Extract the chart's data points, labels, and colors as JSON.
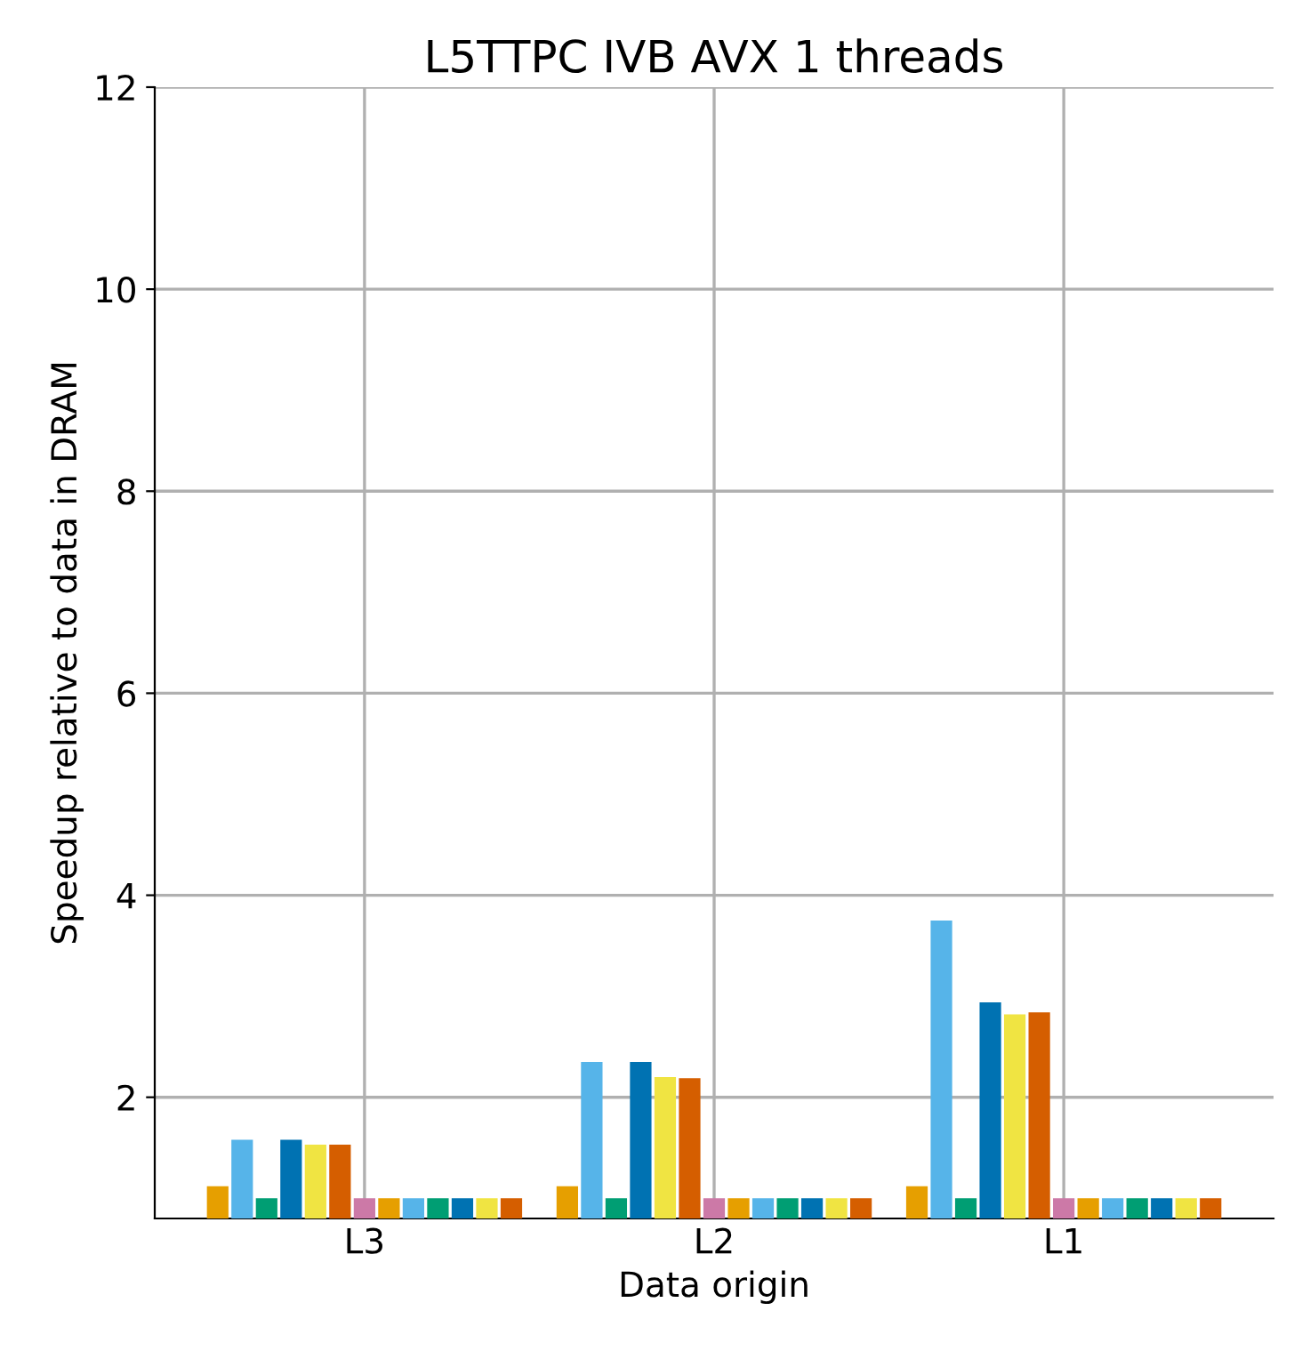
{
  "chart_data": {
    "type": "bar",
    "title": "L5TTPC IVB AVX 1 threads",
    "xlabel": "Data origin",
    "ylabel": "Speedup relative to data in DRAM",
    "categories": [
      "L3",
      "L2",
      "L1"
    ],
    "series": [
      {
        "color": "#e69f00",
        "values": [
          1.12,
          1.12,
          1.12
        ]
      },
      {
        "color": "#56b4e9",
        "values": [
          1.58,
          2.35,
          3.75
        ]
      },
      {
        "color": "#009e73",
        "values": [
          1.0,
          1.0,
          1.0
        ]
      },
      {
        "color": "#0072b2",
        "values": [
          1.58,
          2.35,
          2.94
        ]
      },
      {
        "color": "#f0e442",
        "values": [
          1.53,
          2.2,
          2.82
        ]
      },
      {
        "color": "#d55e00",
        "values": [
          1.53,
          2.19,
          2.84
        ]
      },
      {
        "color": "#cc79a7",
        "values": [
          1.0,
          1.0,
          1.0
        ]
      },
      {
        "color": "#e69f00",
        "values": [
          1.0,
          1.0,
          1.0
        ]
      },
      {
        "color": "#56b4e9",
        "values": [
          1.0,
          1.0,
          1.0
        ]
      },
      {
        "color": "#009e73",
        "values": [
          1.0,
          1.0,
          1.0
        ]
      },
      {
        "color": "#0072b2",
        "values": [
          1.0,
          1.0,
          1.0
        ]
      },
      {
        "color": "#f0e442",
        "values": [
          1.0,
          1.0,
          1.0
        ]
      },
      {
        "color": "#d55e00",
        "values": [
          1.0,
          1.0,
          1.0
        ]
      }
    ],
    "ylim": [
      0.8,
      12
    ],
    "yticks": [
      2,
      4,
      6,
      8,
      10,
      12
    ],
    "grid": true
  }
}
